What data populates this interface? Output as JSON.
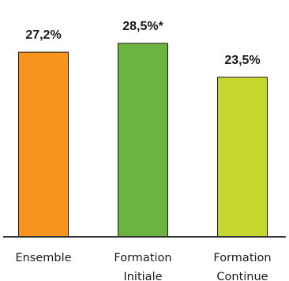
{
  "chart_data": {
    "type": "bar",
    "title": "",
    "xlabel": "",
    "ylabel": "",
    "categories": [
      [
        "Ensemble"
      ],
      [
        "Formation",
        "Initiale"
      ],
      [
        "Formation",
        "Continue"
      ]
    ],
    "values": [
      27.2,
      28.5,
      23.5
    ],
    "value_labels": [
      "27,2%",
      "28,5%*",
      "23,5%"
    ],
    "colors": [
      "#F7941D",
      "#6DB33F",
      "#C4D630"
    ],
    "ylim": [
      0,
      35
    ],
    "grid": false,
    "legend": "none"
  }
}
